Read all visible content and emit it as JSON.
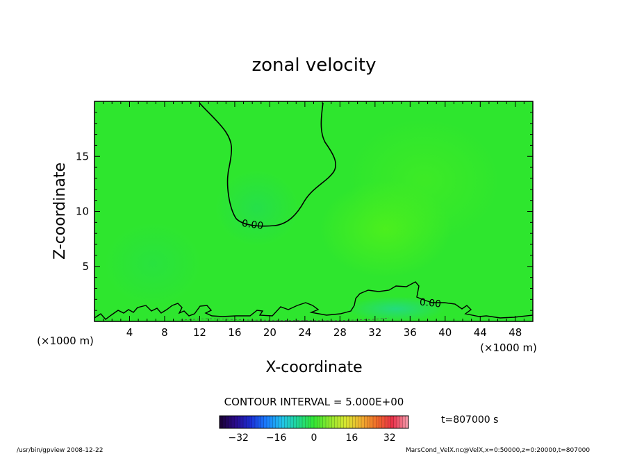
{
  "chart_data": {
    "type": "heatmap",
    "title": "zonal velocity",
    "xlabel": "X-coordinate",
    "ylabel": "Z-coordinate",
    "x_unit_left": "(×1000 m)",
    "x_unit_right": "(×1000 m)",
    "xlim": [
      0,
      50
    ],
    "ylim": [
      0,
      20
    ],
    "x_ticks": [
      4,
      8,
      12,
      16,
      20,
      24,
      28,
      32,
      36,
      40,
      44,
      48
    ],
    "y_ticks": [
      5,
      10,
      15
    ],
    "contour_interval_label": "CONTOUR INTERVAL = 5.000E+00",
    "contour_labels": [
      {
        "value": "0.00",
        "x": 17.8,
        "y": 8.6
      },
      {
        "value": "0.00",
        "x": 38.6,
        "y": 1.7
      }
    ],
    "time_label": "t=807000 s",
    "colorbar": {
      "min": -40,
      "max": 40,
      "ticks": [
        -32,
        -16,
        0,
        16,
        32
      ],
      "colors": [
        "#1a0033",
        "#2a0a8a",
        "#1a2fd6",
        "#1a7fff",
        "#22c4e8",
        "#20d890",
        "#33e633",
        "#8fe82e",
        "#d8e630",
        "#f0b030",
        "#f06a2a",
        "#e8304a",
        "#f4a0b0"
      ]
    },
    "field_background_color": "#2ee62e",
    "footer_left": "/usr/bin/gpview   2008-12-22",
    "footer_right": "MarsCond_VelX.nc@VelX,x=0:50000,z=0:20000,t=807000"
  }
}
